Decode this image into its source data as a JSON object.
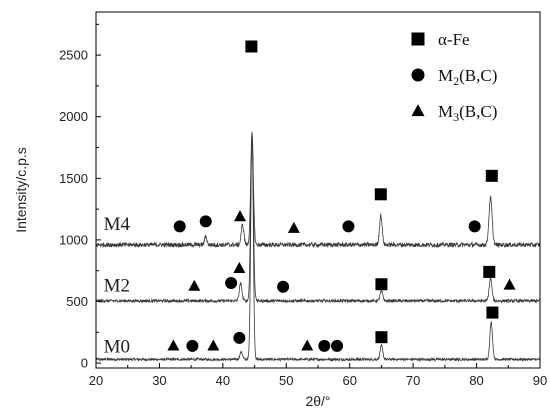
{
  "chart_data": {
    "type": "line",
    "xlabel": "2θ/°",
    "ylabel": "Intensity/c.p.s",
    "xlim": [
      20,
      90
    ],
    "ylim": [
      -40,
      2850
    ],
    "xticks": [
      20,
      30,
      40,
      50,
      60,
      70,
      80,
      90
    ],
    "yticks": [
      0,
      500,
      1000,
      1500,
      2000,
      2500
    ],
    "grid": false,
    "legend": {
      "placement": "top-right",
      "entries": [
        {
          "marker": "square",
          "text": "α-Fe"
        },
        {
          "marker": "circle",
          "text_main": "M",
          "sub": "2",
          "text_rest": "(B,C)"
        },
        {
          "marker": "triangle",
          "text_main": "M",
          "sub": "3",
          "text_rest": "(B,C)"
        }
      ]
    },
    "series": [
      {
        "name": "M0",
        "label_x": 21.2,
        "label_y": 85,
        "baseline": 30,
        "noise": 10,
        "peaks": [
          {
            "x": 44.6,
            "height": 1850,
            "width": 0.28
          },
          {
            "x": 42.9,
            "height": 60,
            "width": 0.3
          },
          {
            "x": 65.0,
            "height": 110,
            "width": 0.3
          },
          {
            "x": 82.3,
            "height": 300,
            "width": 0.3
          }
        ],
        "markers": [
          {
            "shape": "triangle",
            "x": 32.2,
            "y": 140
          },
          {
            "shape": "circle",
            "x": 35.2,
            "y": 140
          },
          {
            "shape": "triangle",
            "x": 38.5,
            "y": 140
          },
          {
            "shape": "circle",
            "x": 42.6,
            "y": 205
          },
          {
            "shape": "triangle",
            "x": 53.3,
            "y": 140
          },
          {
            "shape": "circle",
            "x": 56.0,
            "y": 140
          },
          {
            "shape": "circle",
            "x": 58.0,
            "y": 140
          },
          {
            "shape": "square",
            "x": 65.0,
            "y": 210
          },
          {
            "shape": "square",
            "x": 82.5,
            "y": 410
          }
        ]
      },
      {
        "name": "M2",
        "label_x": 21.2,
        "label_y": 580,
        "baseline": 505,
        "noise": 12,
        "peaks": [
          {
            "x": 44.6,
            "height": 1340,
            "width": 0.3
          },
          {
            "x": 42.8,
            "height": 140,
            "width": 0.3
          },
          {
            "x": 65.0,
            "height": 80,
            "width": 0.3
          },
          {
            "x": 82.2,
            "height": 180,
            "width": 0.3
          }
        ],
        "markers": [
          {
            "shape": "triangle",
            "x": 35.5,
            "y": 625
          },
          {
            "shape": "circle",
            "x": 41.3,
            "y": 650
          },
          {
            "shape": "triangle",
            "x": 42.6,
            "y": 770
          },
          {
            "shape": "circle",
            "x": 49.5,
            "y": 620
          },
          {
            "shape": "square",
            "x": 65.0,
            "y": 640
          },
          {
            "shape": "square",
            "x": 82.0,
            "y": 740
          },
          {
            "shape": "triangle",
            "x": 85.2,
            "y": 635
          }
        ]
      },
      {
        "name": "M4",
        "label_x": 21.2,
        "label_y": 1080,
        "baseline": 960,
        "noise": 18,
        "peaks": [
          {
            "x": 44.6,
            "height": 900,
            "width": 0.3
          },
          {
            "x": 43.1,
            "height": 160,
            "width": 0.3
          },
          {
            "x": 37.3,
            "height": 70,
            "width": 0.25
          },
          {
            "x": 64.9,
            "height": 240,
            "width": 0.3
          },
          {
            "x": 82.2,
            "height": 380,
            "width": 0.35
          }
        ],
        "markers": [
          {
            "shape": "circle",
            "x": 33.2,
            "y": 1110
          },
          {
            "shape": "circle",
            "x": 37.3,
            "y": 1150
          },
          {
            "shape": "triangle",
            "x": 42.7,
            "y": 1190
          },
          {
            "shape": "square",
            "x": 44.5,
            "y": 2570
          },
          {
            "shape": "triangle",
            "x": 51.2,
            "y": 1095
          },
          {
            "shape": "circle",
            "x": 59.8,
            "y": 1110
          },
          {
            "shape": "square",
            "x": 64.9,
            "y": 1370
          },
          {
            "shape": "circle",
            "x": 79.7,
            "y": 1110
          },
          {
            "shape": "square",
            "x": 82.4,
            "y": 1520
          }
        ]
      }
    ]
  }
}
